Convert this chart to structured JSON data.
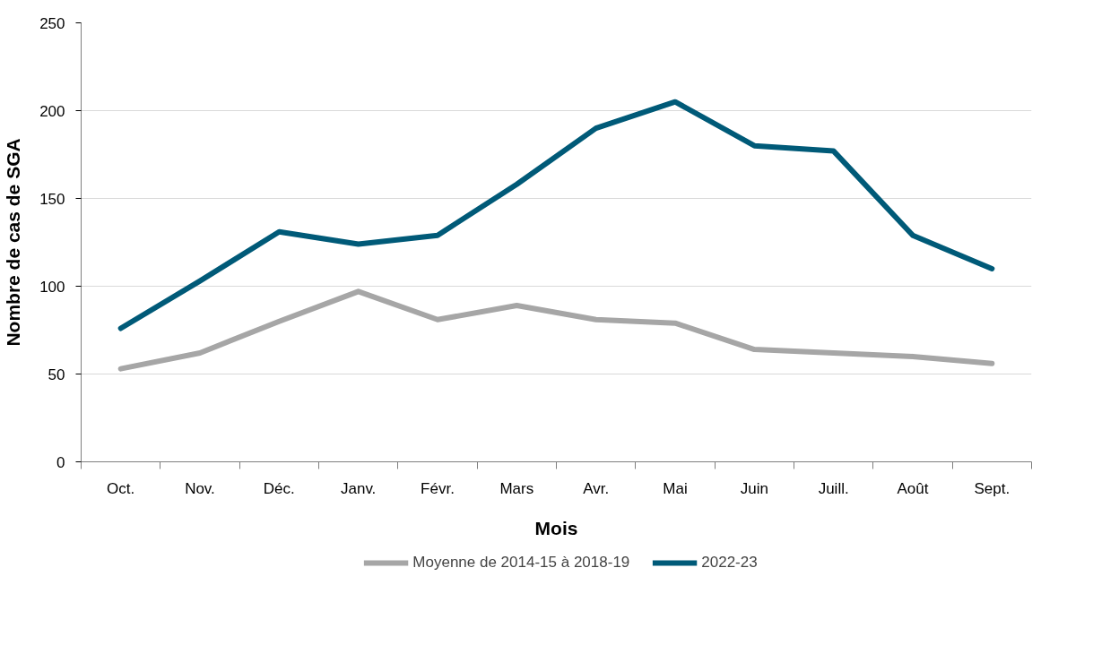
{
  "chart_data": {
    "type": "line",
    "xlabel": "Mois",
    "ylabel": "Nombre de cas de SGA",
    "categories": [
      "Oct.",
      "Nov.",
      "Déc.",
      "Janv.",
      "Févr.",
      "Mars",
      "Avr.",
      "Mai",
      "Juin",
      "Juill.",
      "Août",
      "Sept."
    ],
    "series": [
      {
        "name": "Moyenne de 2014-15 à 2018-19",
        "color": "#a6a6a6",
        "values": [
          53,
          62,
          80,
          97,
          81,
          89,
          81,
          79,
          64,
          62,
          60,
          56
        ]
      },
      {
        "name": "2022-23",
        "color": "#005a78",
        "values": [
          76,
          103,
          131,
          124,
          129,
          158,
          190,
          205,
          180,
          177,
          129,
          110
        ]
      }
    ],
    "ylim": [
      0,
      250
    ],
    "yticks": [
      0,
      50,
      100,
      150,
      200,
      250
    ],
    "grid": "y",
    "legend": "bottom",
    "line_style": "solid",
    "marker": "none"
  }
}
